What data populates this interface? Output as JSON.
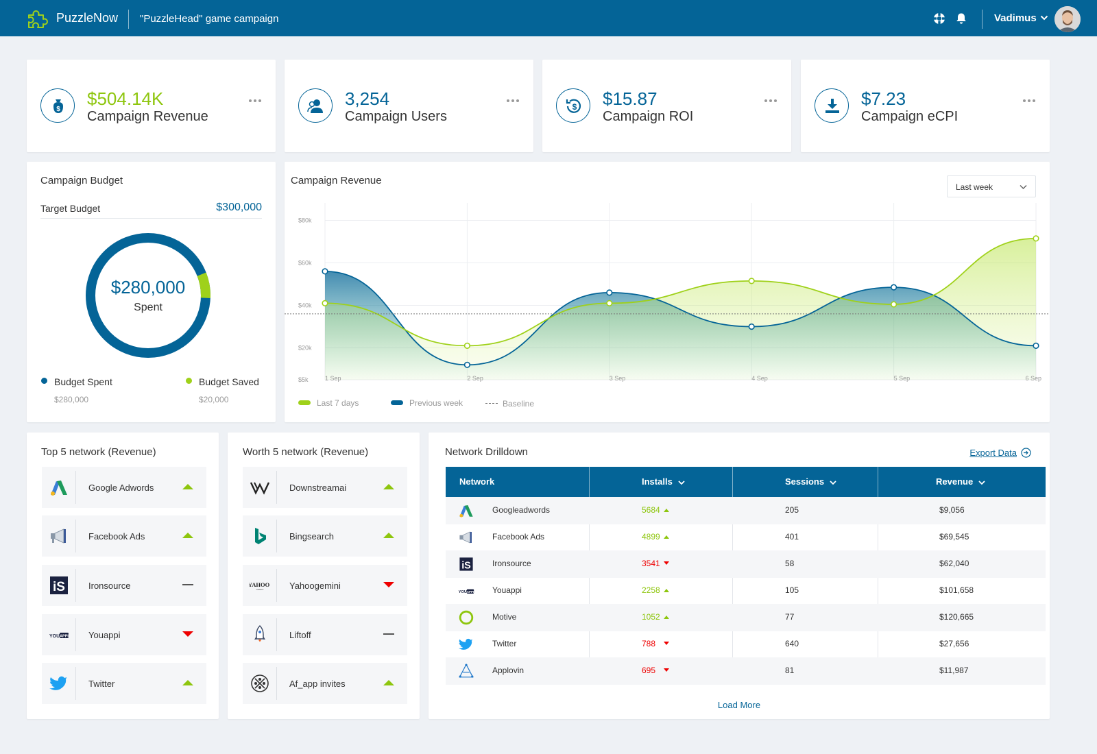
{
  "header": {
    "brand": "PuzzleNow",
    "campaign_title": "\"PuzzleHead\" game campaign",
    "icons": [
      "support-icon",
      "bell-icon"
    ],
    "user_name": "Vadimus"
  },
  "kpis": [
    {
      "value": "$504.14K",
      "label": "Campaign Revenue",
      "icon": "money-bag-icon",
      "accent": "#8ec60e"
    },
    {
      "value": "3,254",
      "label": "Campaign Users",
      "icon": "users-icon",
      "accent": "#046497"
    },
    {
      "value": "$15.87",
      "label": "Campaign ROI",
      "icon": "roi-icon",
      "accent": "#046497"
    },
    {
      "value": "$7.23",
      "label": "Campaign eCPI",
      "icon": "download-icon",
      "accent": "#046497"
    }
  ],
  "budget": {
    "title": "Campaign Budget",
    "target_label": "Target Budget",
    "target_value": "$300,000",
    "spent_value": "$280,000",
    "spent_label": "Spent",
    "spent_fraction": 0.933,
    "legend": [
      {
        "name": "Budget Spent",
        "amount": "$280,000",
        "color": "#046497"
      },
      {
        "name": "Budget Saved",
        "amount": "$20,000",
        "color": "#8ec60e"
      }
    ]
  },
  "revenue_chart": {
    "title": "Campaign Revenue",
    "period": "Last week"
  },
  "chart_data": {
    "type": "area",
    "title": "Campaign Revenue",
    "categories": [
      "1 Sep",
      "2 Sep",
      "3 Sep",
      "4 Sep",
      "5 Sep",
      "6 Sep"
    ],
    "y_ticks": [
      "$5k",
      "$20k",
      "$40k",
      "$60k",
      "$80k"
    ],
    "ylim": [
      5000,
      85000
    ],
    "baseline": 36000,
    "series": [
      {
        "name": "Last 7 days",
        "color": "#9fd11a",
        "values": [
          41000,
          21000,
          41000,
          51500,
          40500,
          71500
        ]
      },
      {
        "name": "Previous week",
        "color": "#046497",
        "values": [
          56000,
          12000,
          46000,
          30000,
          48500,
          21000
        ]
      }
    ],
    "baseline_label": "Baseline",
    "grid": true,
    "legend_position": "bottom-left"
  },
  "top_networks": {
    "title": "Top 5 network (Revenue)",
    "items": [
      {
        "name": "Google Adwords",
        "logo": "google-adwords-icon",
        "trend": "up"
      },
      {
        "name": "Facebook Ads",
        "logo": "megaphone-icon",
        "trend": "up"
      },
      {
        "name": "Ironsource",
        "logo": "ironsource-icon",
        "trend": "flat"
      },
      {
        "name": "Youappi",
        "logo": "youappi-icon",
        "trend": "down"
      },
      {
        "name": "Twitter",
        "logo": "twitter-bird-icon",
        "trend": "up"
      }
    ]
  },
  "worth_networks": {
    "title": "Worth 5 network (Revenue)",
    "items": [
      {
        "name": "Downstreamai",
        "logo": "downstream-icon",
        "trend": "up"
      },
      {
        "name": "Bingsearch",
        "logo": "bing-icon",
        "trend": "up"
      },
      {
        "name": "Yahoogemini",
        "logo": "yahoo-icon",
        "trend": "down"
      },
      {
        "name": "Liftoff",
        "logo": "rocket-icon",
        "trend": "flat"
      },
      {
        "name": "Af_app invites",
        "logo": "af-app-icon",
        "trend": "up"
      }
    ]
  },
  "drilldown": {
    "title": "Network Drilldown",
    "export_label": "Export Data",
    "columns": [
      "Network",
      "Installs",
      "Sessions",
      "Revenue"
    ],
    "rows": [
      {
        "network": "Googleadwords",
        "logo": "google-adwords-icon",
        "installs": "5684",
        "trend": "up",
        "sessions": "205",
        "revenue": "$9,056"
      },
      {
        "network": "Facebook Ads",
        "logo": "megaphone-icon",
        "installs": "4899",
        "trend": "up",
        "sessions": "401",
        "revenue": "$69,545"
      },
      {
        "network": "Ironsource",
        "logo": "ironsource-icon",
        "installs": "3541",
        "trend": "down",
        "sessions": "58",
        "revenue": "$62,040"
      },
      {
        "network": "Youappi",
        "logo": "youappi-icon",
        "installs": "2258",
        "trend": "up",
        "sessions": "105",
        "revenue": "$101,658"
      },
      {
        "network": "Motive",
        "logo": "motive-ring-icon",
        "installs": "1052",
        "trend": "up",
        "sessions": "77",
        "revenue": "$120,665"
      },
      {
        "network": "Twitter",
        "logo": "twitter-bird-icon",
        "installs": "788",
        "trend": "down",
        "sessions": "640",
        "revenue": "$27,656"
      },
      {
        "network": "Applovin",
        "logo": "applovin-icon",
        "installs": "695",
        "trend": "down",
        "sessions": "81",
        "revenue": "$11,987"
      }
    ],
    "load_more": "Load More"
  },
  "colors": {
    "primary": "#046497",
    "accent": "#8ec60e",
    "down": "#e00000",
    "background": "#eef1f5"
  }
}
